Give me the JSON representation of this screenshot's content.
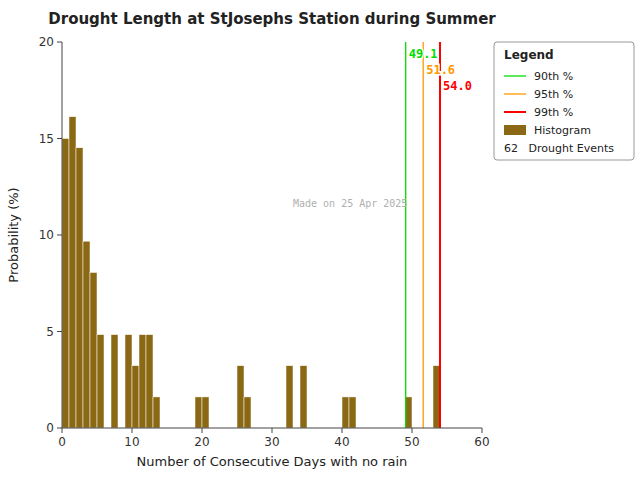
{
  "chart_data": {
    "type": "histogram",
    "title": "Drought Length at StJosephs Station during Summer",
    "x_label": "Number of Consecutive Days with no rain",
    "y_label": "Probability (%)",
    "series": [
      {
        "name": "Histogram",
        "type": "histogram",
        "color": "#8B6914",
        "bins": [
          0,
          1,
          2,
          3,
          4,
          5,
          6,
          7,
          8,
          9,
          10,
          11,
          12,
          13,
          14,
          15,
          16,
          17,
          18,
          19,
          20,
          21,
          22,
          23,
          24,
          25,
          26,
          27,
          28,
          29,
          30,
          31,
          32,
          33,
          34,
          35,
          36,
          37,
          38,
          39,
          40,
          41,
          42,
          43,
          44,
          45,
          46,
          47,
          48,
          49,
          50,
          51,
          52,
          53,
          54,
          55,
          56,
          57,
          58,
          59
        ],
        "values": [
          15.0,
          16.13,
          14.52,
          9.68,
          8.06,
          4.84,
          0.0,
          4.84,
          0.0,
          4.84,
          3.23,
          4.84,
          4.84,
          1.61,
          0.0,
          0.0,
          0.0,
          0.0,
          0.0,
          1.61,
          1.61,
          0.0,
          0.0,
          0.0,
          0.0,
          3.23,
          1.61,
          0.0,
          0.0,
          0.0,
          0.0,
          0.0,
          3.23,
          0.0,
          3.23,
          0.0,
          0.0,
          0.0,
          0.0,
          0.0,
          1.61,
          1.61,
          0.0,
          0.0,
          0.0,
          0.0,
          0.0,
          0.0,
          0.0,
          1.61,
          0.0,
          0.0,
          0.0,
          3.23,
          0.0,
          0.0,
          0.0,
          0.0,
          0.0
        ]
      }
    ],
    "vlines": [
      {
        "name": "90th %",
        "x": 49.1,
        "label": "49.1",
        "color": "#00dd00"
      },
      {
        "name": "95th %",
        "x": 51.6,
        "label": "51.6",
        "color": "#ff9900"
      },
      {
        "name": "99th %",
        "x": 54.0,
        "label": "54.0",
        "color": "#ff0000"
      }
    ],
    "legend_title": "Legend",
    "legend_text": "62   Drought Events",
    "annotations": [
      {
        "text": "Made on 25 Apr 2025"
      }
    ],
    "xlim": [
      0,
      60
    ],
    "ylim": [
      0,
      20
    ],
    "xticks": [
      0,
      10,
      20,
      30,
      40,
      50,
      60
    ],
    "yticks": [
      0,
      5,
      10,
      15,
      20
    ],
    "grid": false,
    "legend": "upper right"
  }
}
